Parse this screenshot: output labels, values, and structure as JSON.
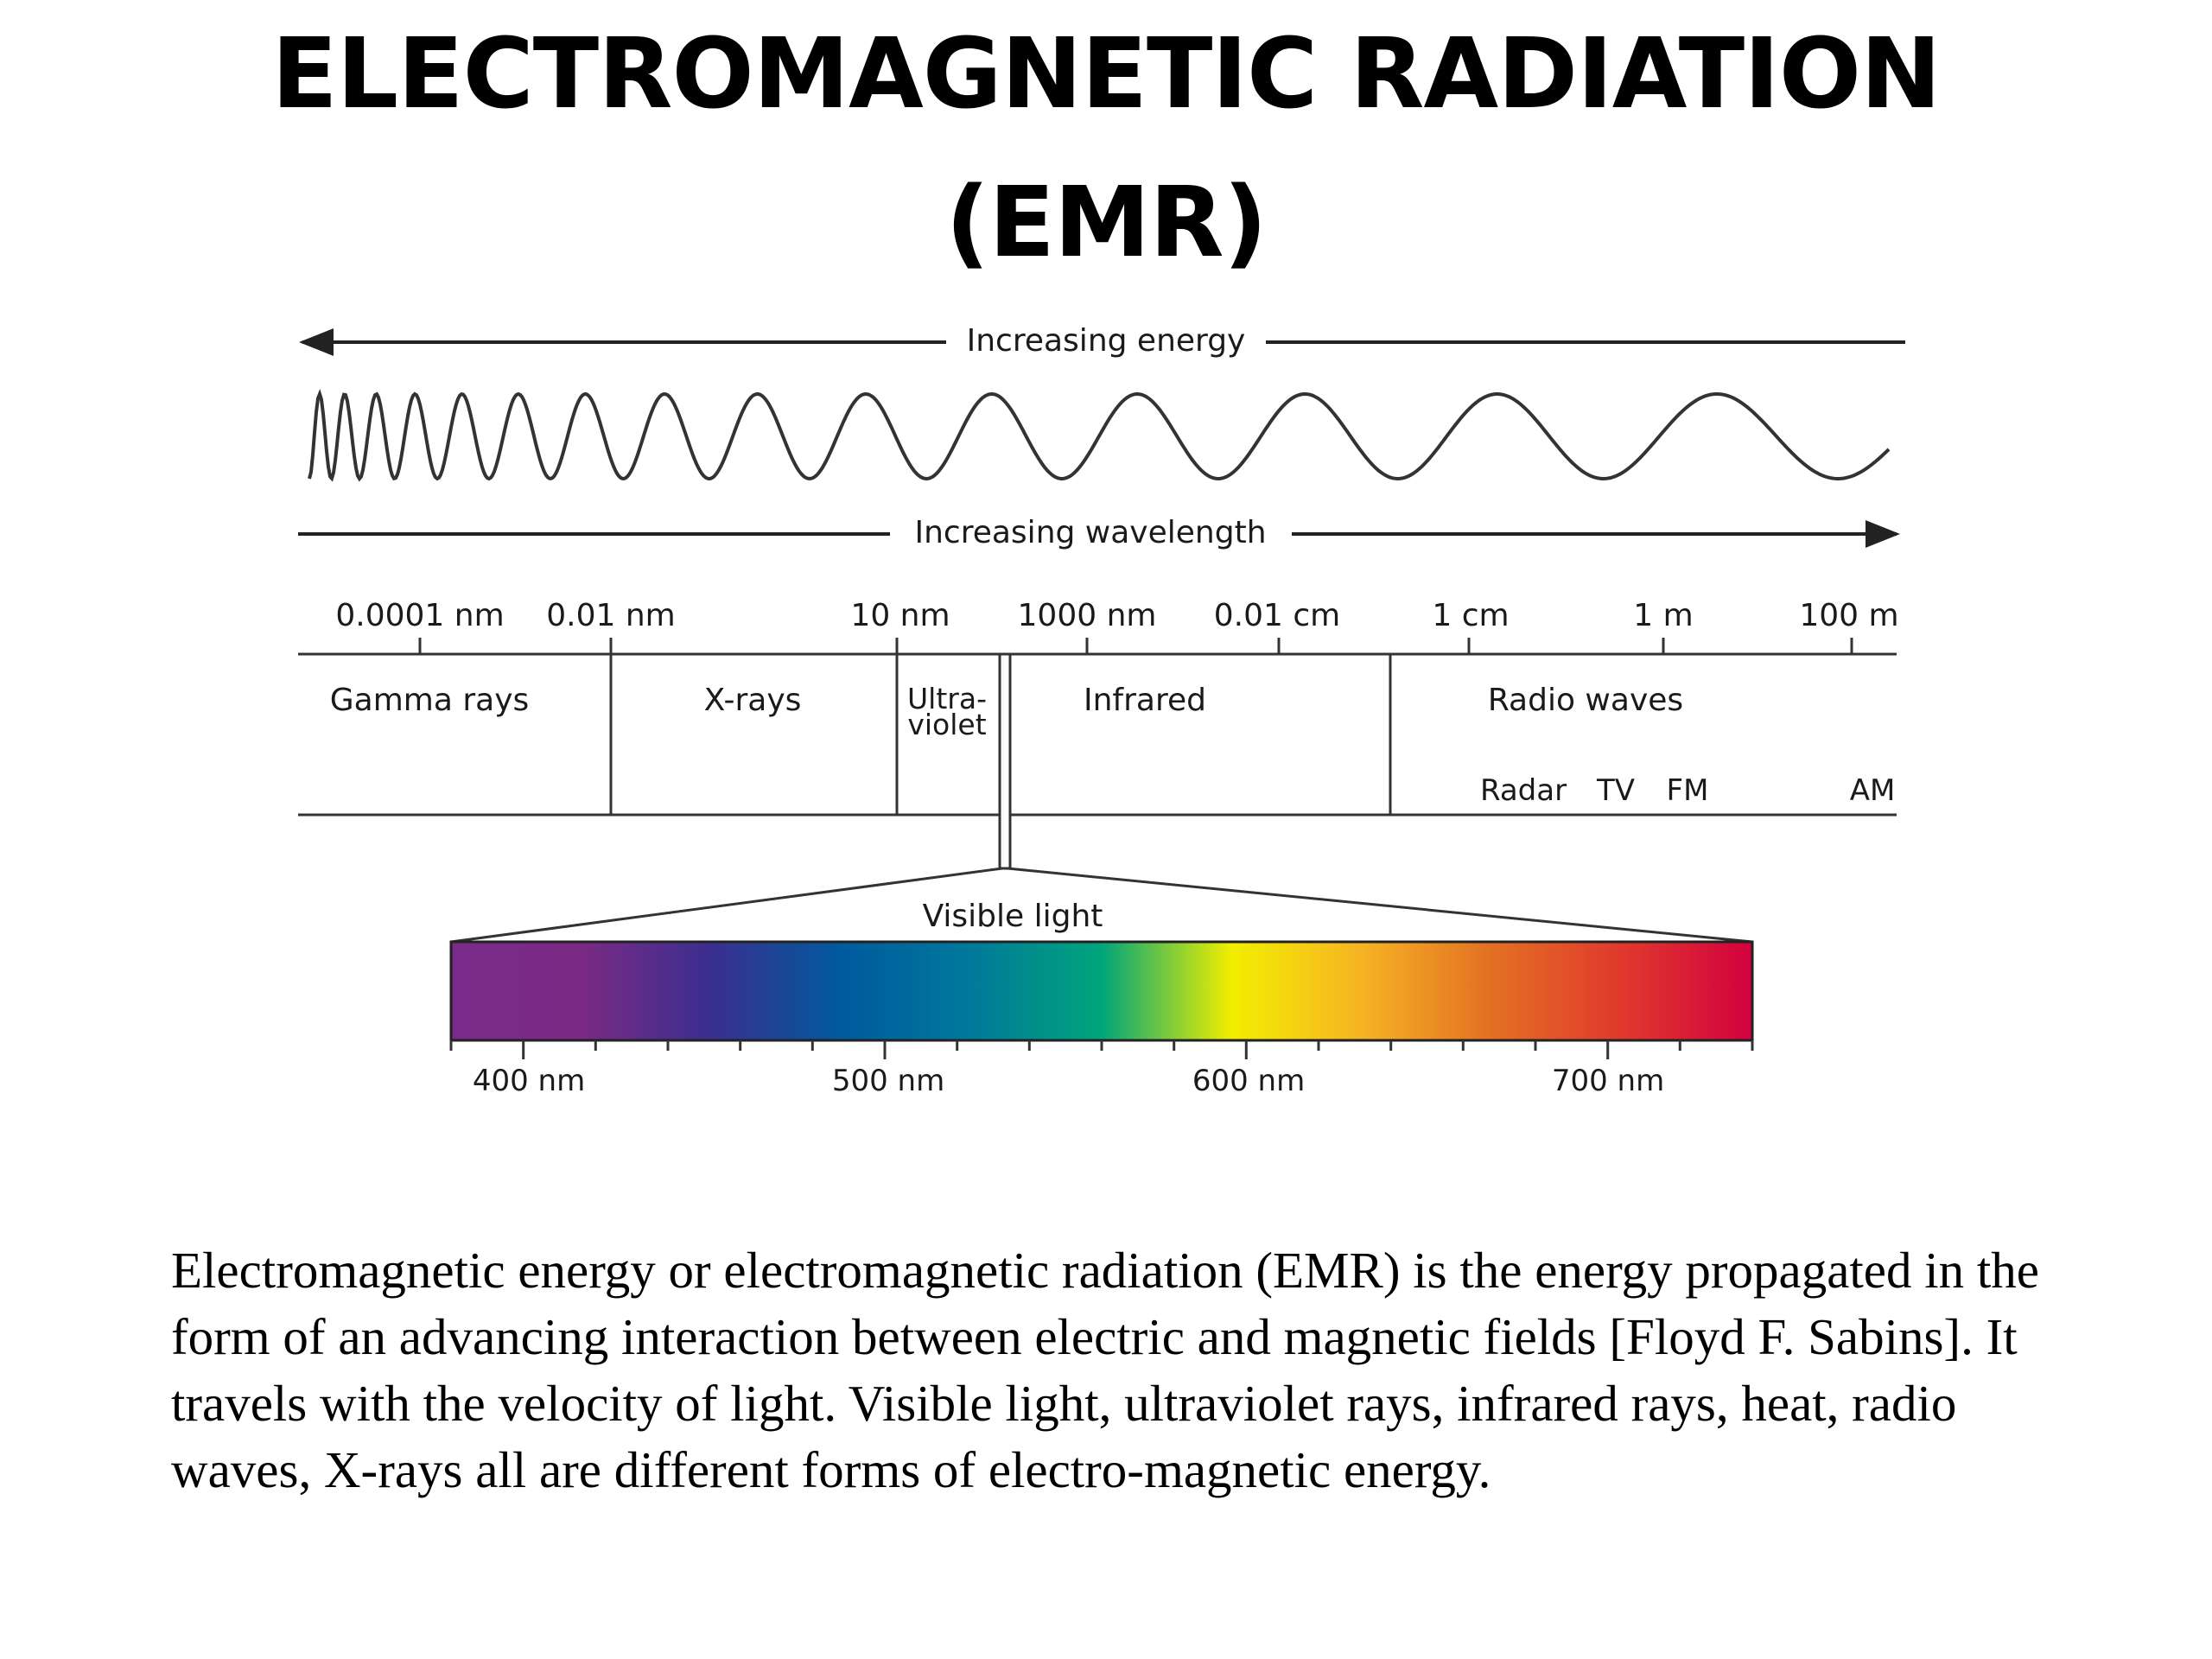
{
  "slide": {
    "title_line1": "ELECTROMAGNETIC RADIATION",
    "title_line2": "(EMR)",
    "paragraph": "Electromagnetic energy or electromagnetic radiation (EMR) is the energy propagated in the form of an advancing interaction between electric and magnetic fields [Floyd F. Sabins]. It travels with the velocity of light. Visible light, ultraviolet rays, infrared rays, heat, radio waves, X-rays all are different forms of electro-magnetic energy."
  },
  "diagram": {
    "energy_label": "Increasing energy",
    "wavelength_label": "Increasing wavelength",
    "scale_ticks": [
      "0.0001 nm",
      "0.01 nm",
      "10 nm",
      "1000 nm",
      "0.01 cm",
      "1 cm",
      "1 m",
      "100 m"
    ],
    "regions": {
      "gamma": "Gamma rays",
      "xrays": "X-rays",
      "uv_line1": "Ultra-",
      "uv_line2": "violet",
      "infrared": "Infrared",
      "radio": "Radio waves"
    },
    "radio_bands": [
      "Radar",
      "TV",
      "FM",
      "AM"
    ],
    "visible_label": "Visible light",
    "visible_ticks": [
      "400 nm",
      "500 nm",
      "600 nm",
      "700 nm"
    ],
    "spectrum_colors": [
      "#7a2a8a",
      "#7a2a84",
      "#3a2f8f",
      "#005a9e",
      "#00799b",
      "#00a57a",
      "#f2ee00",
      "#f6b324",
      "#e26f23",
      "#e0392d",
      "#d3003f"
    ],
    "line_color": "#333333"
  }
}
